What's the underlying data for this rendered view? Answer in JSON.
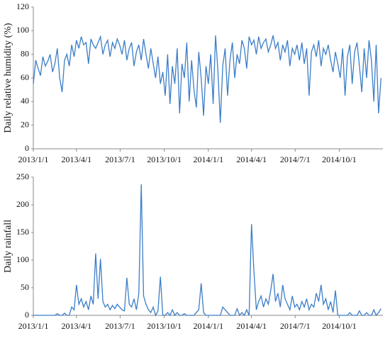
{
  "chart_data": [
    {
      "type": "line",
      "y_label": "Daily relative humidity (%)",
      "xlim": [
        0,
        729
      ],
      "xticks": [
        {
          "value": 0,
          "label": "2013/1/1"
        },
        {
          "value": 90,
          "label": "2013/4/1"
        },
        {
          "value": 181,
          "label": "2013/7/1"
        },
        {
          "value": 273,
          "label": "2013/10/1"
        },
        {
          "value": 365,
          "label": "2014/1/1"
        },
        {
          "value": 455,
          "label": "2014/4/1"
        },
        {
          "value": 546,
          "label": "2014/7/1"
        },
        {
          "value": 638,
          "label": "2014/10/1"
        }
      ],
      "ylim": [
        0,
        120
      ],
      "yticks": [
        0,
        20,
        40,
        60,
        80,
        100,
        120
      ],
      "series": [
        {
          "color": "#3b7dc8",
          "x": [
            0,
            5,
            10,
            15,
            20,
            25,
            30,
            35,
            40,
            45,
            50,
            55,
            60,
            65,
            70,
            75,
            80,
            85,
            90,
            95,
            100,
            105,
            110,
            115,
            120,
            125,
            130,
            135,
            140,
            145,
            150,
            155,
            160,
            165,
            170,
            175,
            180,
            185,
            190,
            195,
            200,
            205,
            210,
            215,
            220,
            225,
            230,
            235,
            240,
            245,
            250,
            255,
            260,
            265,
            270,
            275,
            280,
            285,
            290,
            295,
            300,
            305,
            310,
            315,
            320,
            325,
            330,
            335,
            340,
            345,
            350,
            355,
            360,
            365,
            370,
            375,
            380,
            385,
            390,
            395,
            400,
            405,
            410,
            415,
            420,
            425,
            430,
            435,
            440,
            445,
            450,
            455,
            460,
            465,
            470,
            475,
            480,
            485,
            490,
            495,
            500,
            505,
            510,
            515,
            520,
            525,
            530,
            535,
            540,
            545,
            550,
            555,
            560,
            565,
            570,
            575,
            580,
            585,
            590,
            595,
            600,
            605,
            610,
            615,
            620,
            625,
            630,
            635,
            640,
            645,
            650,
            655,
            660,
            665,
            670,
            675,
            680,
            685,
            690,
            695,
            700,
            705,
            710,
            715,
            720,
            725
          ],
          "values": [
            55,
            75,
            68,
            62,
            78,
            70,
            74,
            80,
            65,
            72,
            85,
            60,
            48,
            75,
            80,
            70,
            88,
            78,
            92,
            85,
            95,
            88,
            90,
            72,
            93,
            88,
            85,
            90,
            95,
            80,
            88,
            92,
            78,
            90,
            85,
            93,
            88,
            80,
            92,
            75,
            85,
            90,
            70,
            82,
            88,
            75,
            93,
            80,
            68,
            85,
            72,
            60,
            78,
            55,
            65,
            45,
            80,
            38,
            70,
            55,
            85,
            30,
            72,
            60,
            90,
            40,
            75,
            50,
            35,
            82,
            60,
            28,
            70,
            55,
            80,
            38,
            96,
            65,
            22,
            70,
            85,
            45,
            75,
            90,
            60,
            80,
            72,
            92,
            85,
            68,
            95,
            88,
            92,
            80,
            95,
            85,
            90,
            93,
            82,
            88,
            96,
            85,
            90,
            75,
            88,
            82,
            92,
            70,
            85,
            80,
            88,
            75,
            90,
            72,
            85,
            45,
            82,
            88,
            78,
            92,
            70,
            85,
            80,
            88,
            75,
            65,
            82,
            72,
            60,
            85,
            45,
            78,
            88,
            55,
            82,
            90,
            70,
            48,
            85,
            60,
            92,
            75,
            40,
            88,
            30,
            60
          ]
        }
      ]
    },
    {
      "type": "line",
      "y_label": "Daily rainfall",
      "xlim": [
        0,
        729
      ],
      "xticks": [
        {
          "value": 0,
          "label": "2013/1/1"
        },
        {
          "value": 90,
          "label": "2013/4/1"
        },
        {
          "value": 181,
          "label": "2013/7/1"
        },
        {
          "value": 273,
          "label": "2013/10/1"
        },
        {
          "value": 365,
          "label": "2014/1/1"
        },
        {
          "value": 455,
          "label": "2014/4/1"
        },
        {
          "value": 546,
          "label": "2014/7/1"
        },
        {
          "value": 638,
          "label": "2014/10/1"
        }
      ],
      "ylim": [
        0,
        250
      ],
      "yticks": [
        0,
        50,
        100,
        150,
        200,
        250
      ],
      "series": [
        {
          "color": "#3b7dc8",
          "x": [
            0,
            5,
            10,
            15,
            20,
            25,
            30,
            35,
            40,
            45,
            50,
            55,
            60,
            65,
            70,
            75,
            80,
            85,
            90,
            95,
            100,
            105,
            110,
            115,
            120,
            125,
            130,
            135,
            140,
            145,
            150,
            155,
            160,
            165,
            170,
            175,
            180,
            185,
            190,
            195,
            200,
            205,
            210,
            215,
            220,
            225,
            230,
            235,
            240,
            245,
            250,
            255,
            260,
            265,
            270,
            275,
            280,
            285,
            290,
            295,
            300,
            305,
            310,
            315,
            320,
            325,
            330,
            335,
            340,
            345,
            350,
            355,
            360,
            365,
            370,
            375,
            380,
            385,
            390,
            395,
            400,
            405,
            410,
            415,
            420,
            425,
            430,
            435,
            440,
            445,
            450,
            455,
            460,
            465,
            470,
            475,
            480,
            485,
            490,
            495,
            500,
            505,
            510,
            515,
            520,
            525,
            530,
            535,
            540,
            545,
            550,
            555,
            560,
            565,
            570,
            575,
            580,
            585,
            590,
            595,
            600,
            605,
            610,
            615,
            620,
            625,
            630,
            635,
            640,
            645,
            650,
            655,
            660,
            665,
            670,
            675,
            680,
            685,
            690,
            695,
            700,
            705,
            710,
            715,
            720,
            725
          ],
          "values": [
            0,
            0,
            0,
            0,
            0,
            0,
            0,
            0,
            0,
            0,
            3,
            0,
            0,
            4,
            0,
            0,
            15,
            10,
            55,
            20,
            30,
            15,
            25,
            10,
            35,
            20,
            112,
            30,
            102,
            25,
            15,
            20,
            10,
            18,
            12,
            20,
            15,
            10,
            8,
            68,
            20,
            15,
            30,
            10,
            40,
            237,
            35,
            20,
            10,
            5,
            15,
            0,
            8,
            70,
            0,
            0,
            5,
            0,
            10,
            0,
            5,
            0,
            0,
            3,
            0,
            0,
            0,
            0,
            5,
            10,
            58,
            5,
            0,
            0,
            0,
            0,
            0,
            0,
            0,
            15,
            10,
            5,
            0,
            0,
            0,
            12,
            0,
            5,
            0,
            10,
            0,
            165,
            80,
            10,
            25,
            35,
            15,
            30,
            20,
            45,
            75,
            25,
            40,
            15,
            55,
            30,
            20,
            10,
            35,
            15,
            20,
            10,
            25,
            15,
            30,
            10,
            20,
            15,
            40,
            25,
            55,
            20,
            30,
            10,
            25,
            5,
            45,
            0,
            0,
            0,
            0,
            0,
            5,
            0,
            0,
            0,
            8,
            0,
            0,
            5,
            0,
            0,
            10,
            0,
            5,
            12
          ]
        }
      ]
    }
  ]
}
